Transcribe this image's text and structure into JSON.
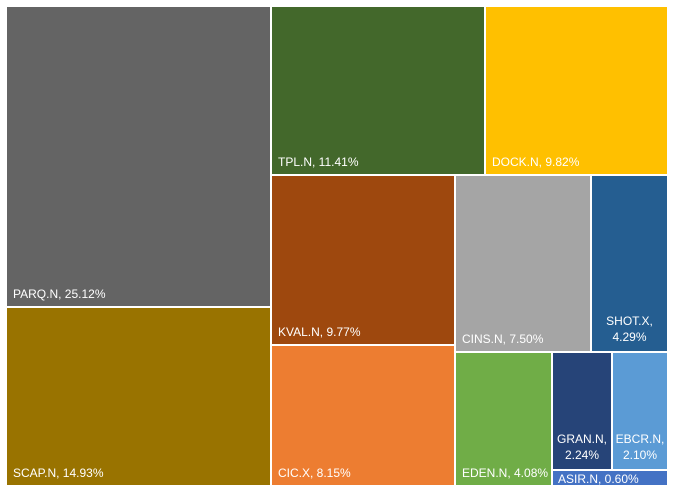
{
  "chart_data": {
    "type": "treemap",
    "labels": [
      "PARQ.N, 25.12%",
      "SCAP.N, 14.93%",
      "TPL.N, 11.41%",
      "DOCK.N, 9.82%",
      "KVAL.N, 9.77%",
      "CIC.X, 8.15%",
      "CINS.N, 7.50%",
      "SHOT.X, 4.29%",
      "EDEN.N, 4.08%",
      "GRAN.N, 2.24%",
      "EBCR.N, 2.10%",
      "ASIR.N, 0.60%"
    ],
    "values": [
      25.12,
      14.93,
      11.41,
      9.82,
      9.77,
      8.15,
      7.5,
      4.29,
      4.08,
      2.24,
      2.1,
      0.6
    ],
    "colors": [
      "#646464",
      "#997300",
      "#43682b",
      "#ffc000",
      "#9e480e",
      "#ed7d31",
      "#a5a5a5",
      "#255e91",
      "#70ad47",
      "#264478",
      "#5b9bd5",
      "#4472c4"
    ]
  }
}
